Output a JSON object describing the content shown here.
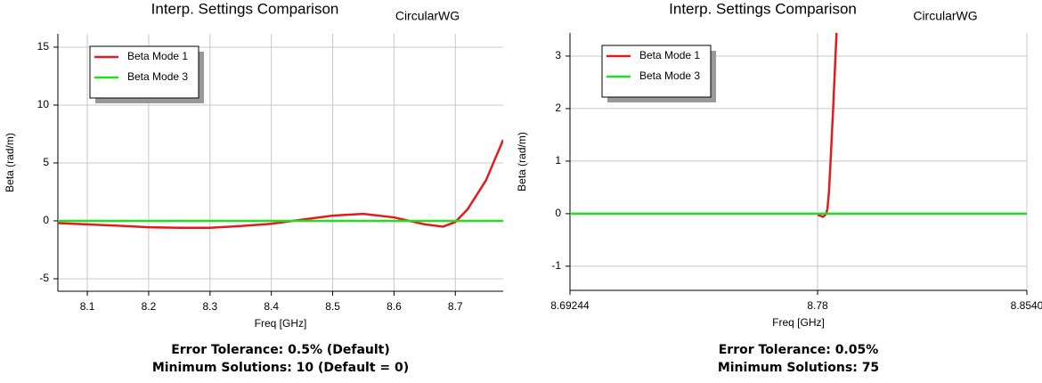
{
  "chart_data": [
    {
      "type": "line",
      "title": "Interp. Settings Comparison",
      "subtitle": "CircularWG",
      "x_label": "Freq [GHz]",
      "y_label": "Beta (rad/m)",
      "xlim": [
        8.052,
        8.778
      ],
      "xticks": [
        8.1,
        8.2,
        8.3,
        8.4,
        8.5,
        8.6,
        8.7
      ],
      "ylim": [
        -6.08,
        16.15
      ],
      "yticks": [
        -5,
        0,
        5,
        10,
        15
      ],
      "grid": true,
      "legend": "upper left",
      "series": [
        {
          "name": "Beta Mode 1",
          "color": "#e41a1c",
          "x": [
            8.052,
            8.1,
            8.15,
            8.2,
            8.25,
            8.3,
            8.35,
            8.4,
            8.45,
            8.5,
            8.55,
            8.6,
            8.65,
            8.68,
            8.7,
            8.72,
            8.75,
            8.778
          ],
          "y": [
            -0.2,
            -0.3,
            -0.42,
            -0.55,
            -0.6,
            -0.6,
            -0.45,
            -0.25,
            0.1,
            0.45,
            0.6,
            0.3,
            -0.3,
            -0.5,
            -0.1,
            1.0,
            3.5,
            7.0
          ]
        },
        {
          "name": "Beta Mode 3",
          "color": "#22dd22",
          "x": [
            8.052,
            8.778
          ],
          "y": [
            0,
            0
          ]
        }
      ],
      "annotations": [
        "Error Tolerance:  0.5% (Default)",
        "Minimum Solutions:  10 (Default = 0)"
      ]
    },
    {
      "type": "line",
      "title": "Interp. Settings Comparison",
      "subtitle": "CircularWG",
      "x_label": "Freq [GHz]",
      "y_label": "Beta (rad/m)",
      "xlim": [
        8.69244,
        8.854
      ],
      "xticks": [
        8.69244,
        8.78,
        {
          "value": 8.854,
          "label": "8.8540"
        }
      ],
      "ylim": [
        -1.46,
        3.44
      ],
      "yticks": [
        -1,
        0,
        1,
        2,
        3
      ],
      "grid": true,
      "legend": "upper left",
      "series": [
        {
          "name": "Beta Mode 1",
          "color": "#e41a1c",
          "x": [
            8.78,
            8.7819,
            8.783,
            8.7835,
            8.784,
            8.7845,
            8.7855,
            8.7867
          ],
          "y": [
            -0.02,
            -0.06,
            -0.01,
            0.1,
            0.4,
            0.9,
            2.0,
            3.44
          ]
        },
        {
          "name": "Beta Mode 3",
          "color": "#22dd22",
          "x": [
            8.69244,
            8.854
          ],
          "y": [
            0,
            0
          ]
        }
      ],
      "annotations": [
        "Error Tolerance:  0.05%",
        "Minimum Solutions:  75"
      ]
    }
  ]
}
